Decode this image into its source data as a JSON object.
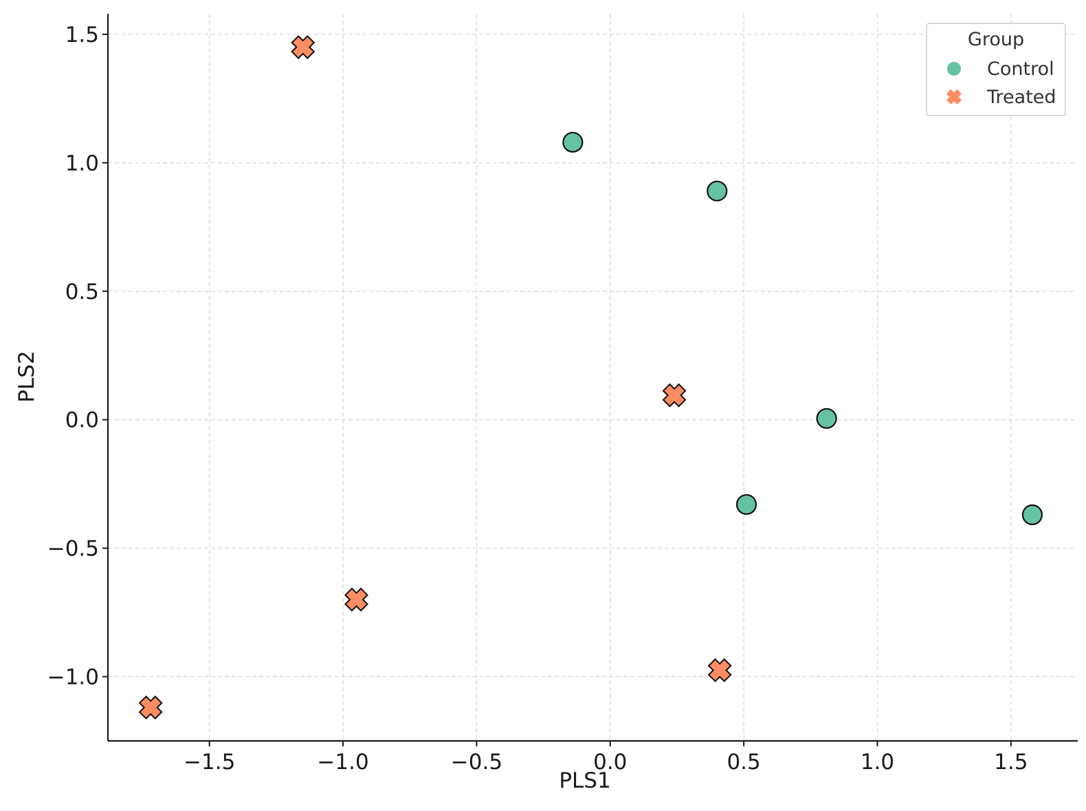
{
  "chart_data": {
    "type": "scatter",
    "title": "",
    "xlabel": "PLS1",
    "ylabel": "PLS2",
    "xlim": [
      -1.88,
      1.75
    ],
    "ylim": [
      -1.25,
      1.58
    ],
    "xticks": [
      -1.5,
      -1.0,
      -0.5,
      0.0,
      0.5,
      1.0,
      1.5
    ],
    "yticks": [
      -1.0,
      -0.5,
      0.0,
      0.5,
      1.0,
      1.5
    ],
    "xtick_labels": [
      "−1.5",
      "−1.0",
      "−0.5",
      "0.0",
      "0.5",
      "1.0",
      "1.5"
    ],
    "ytick_labels": [
      "−1.0",
      "−0.5",
      "0.0",
      "0.5",
      "1.0",
      "1.5"
    ],
    "grid": true,
    "legend": {
      "title": "Group",
      "position": "top-right"
    },
    "series": [
      {
        "name": "Control",
        "marker": "circle",
        "color": "#66c2a5",
        "points": [
          {
            "x": -0.14,
            "y": 1.08
          },
          {
            "x": 0.4,
            "y": 0.89
          },
          {
            "x": 0.81,
            "y": 0.005
          },
          {
            "x": 0.51,
            "y": -0.33
          },
          {
            "x": 1.58,
            "y": -0.37
          }
        ]
      },
      {
        "name": "Treated",
        "marker": "x",
        "color": "#fc8d62",
        "points": [
          {
            "x": -1.15,
            "y": 1.45
          },
          {
            "x": 0.24,
            "y": 0.095
          },
          {
            "x": -0.95,
            "y": -0.7
          },
          {
            "x": 0.41,
            "y": -0.975
          },
          {
            "x": -1.72,
            "y": -1.12
          }
        ]
      }
    ]
  }
}
